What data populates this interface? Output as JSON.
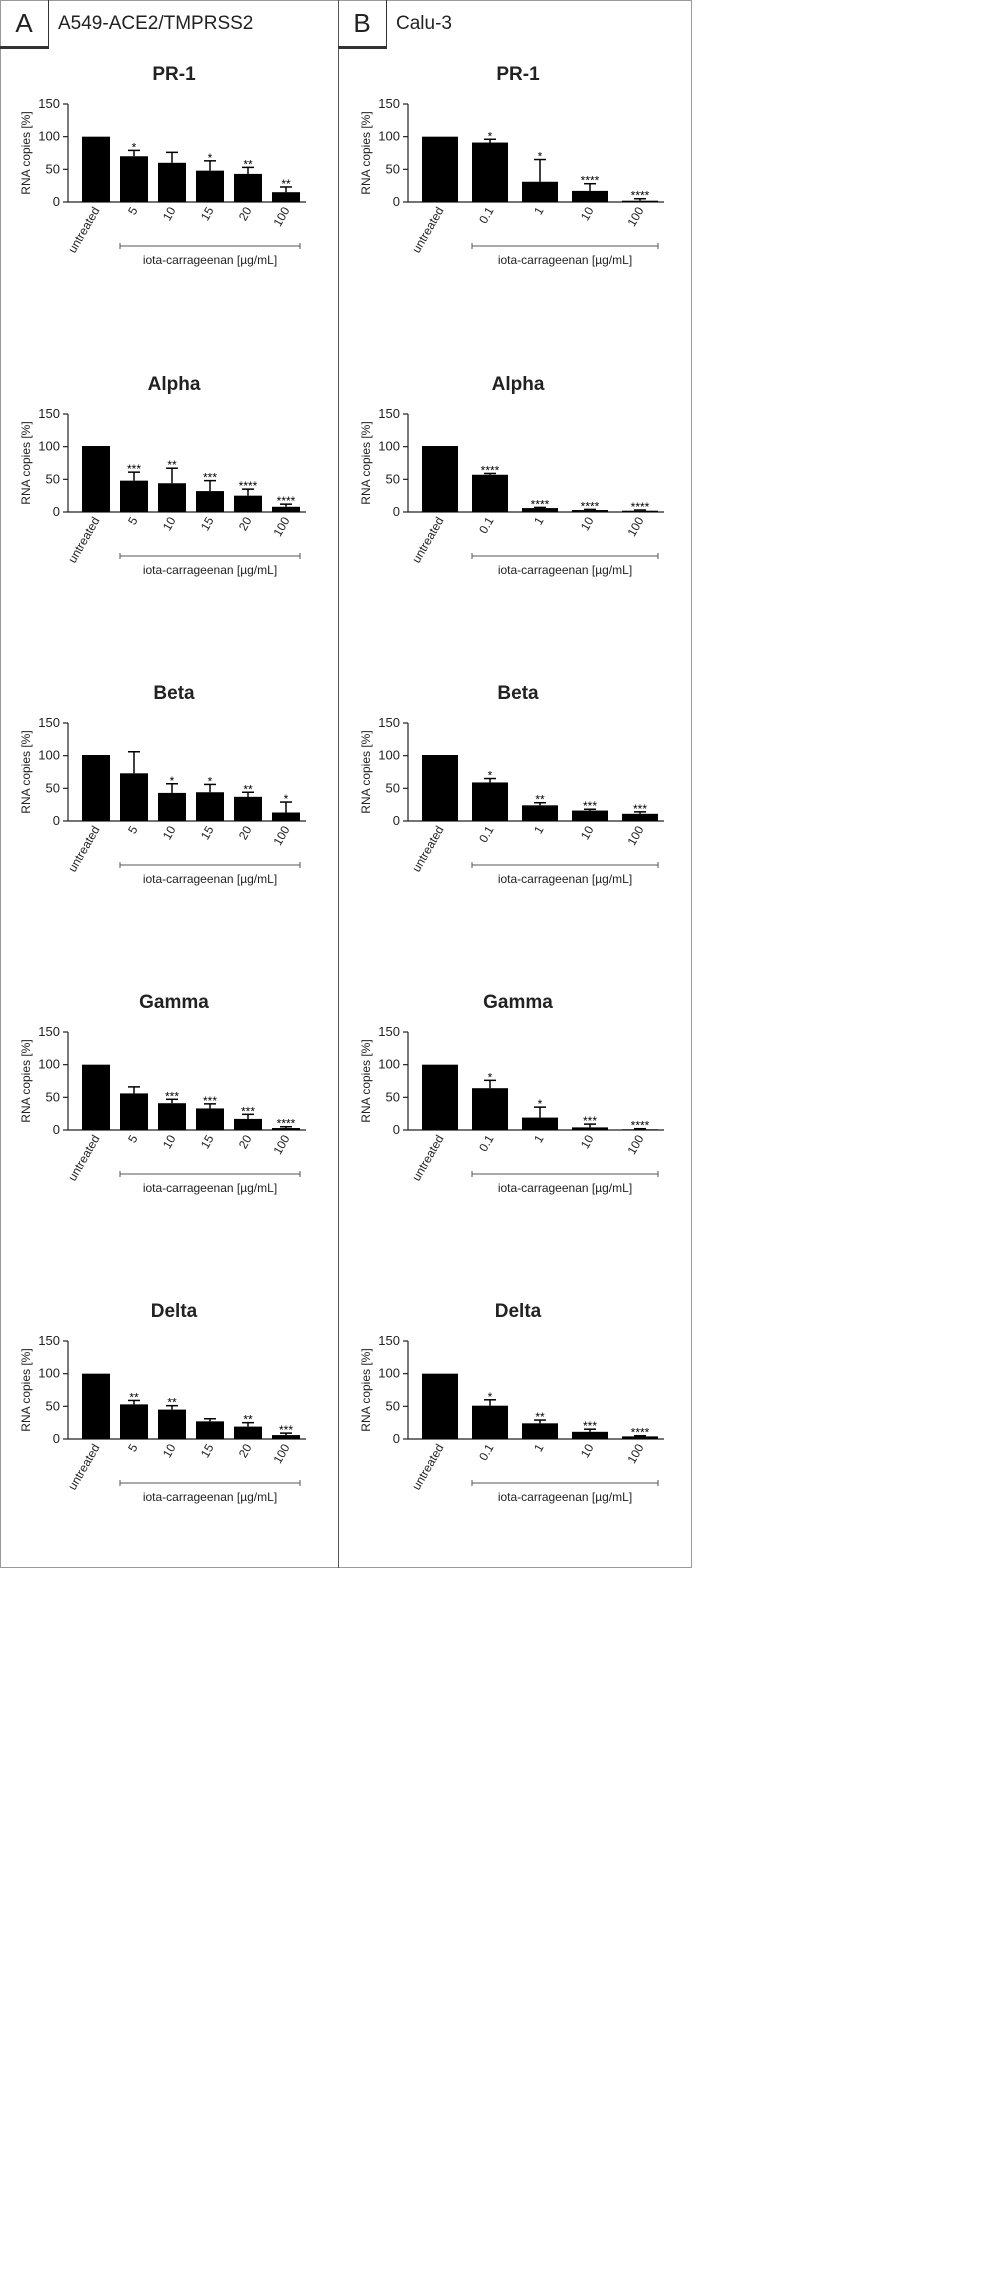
{
  "panels": [
    {
      "letter": "A",
      "cell_line": "A549-ACE2/TMPRSS2"
    },
    {
      "letter": "B",
      "cell_line": "Calu-3"
    }
  ],
  "chart_data": [
    {
      "panel": "A",
      "type": "bar",
      "title": "PR-1",
      "ylabel": "RNA copies [%]",
      "xlabel": "iota-carrageenan [µg/mL]",
      "ylim": [
        0,
        150
      ],
      "yticks": [
        0,
        50,
        100,
        150
      ],
      "categories": [
        "untreated",
        "5",
        "10",
        "15",
        "20",
        "100"
      ],
      "values": [
        100,
        70,
        60,
        48,
        43,
        15
      ],
      "errors": [
        0,
        9,
        16,
        15,
        10,
        8
      ],
      "significance": [
        "",
        "*",
        "",
        "*",
        "**",
        "**"
      ]
    },
    {
      "panel": "A",
      "type": "bar",
      "title": "Alpha",
      "ylabel": "RNA copies [%]",
      "xlabel": "iota-carrageenan [µg/mL]",
      "ylim": [
        0,
        150
      ],
      "yticks": [
        0,
        50,
        100,
        150
      ],
      "categories": [
        "untreated",
        "5",
        "10",
        "15",
        "20",
        "100"
      ],
      "values": [
        101,
        48,
        44,
        32,
        25,
        8
      ],
      "errors": [
        0,
        13,
        23,
        16,
        10,
        4
      ],
      "significance": [
        "",
        "***",
        "**",
        "***",
        "****",
        "****"
      ]
    },
    {
      "panel": "A",
      "type": "bar",
      "title": "Beta",
      "ylabel": "RNA copies [%]",
      "xlabel": "iota-carrageenan [µg/mL]",
      "ylim": [
        0,
        150
      ],
      "yticks": [
        0,
        50,
        100,
        150
      ],
      "categories": [
        "untreated",
        "5",
        "10",
        "15",
        "20",
        "100"
      ],
      "values": [
        101,
        73,
        43,
        44,
        37,
        13
      ],
      "errors": [
        0,
        33,
        14,
        12,
        7,
        16
      ],
      "significance": [
        "",
        "",
        "*",
        "*",
        "**",
        "*"
      ]
    },
    {
      "panel": "A",
      "type": "bar",
      "title": "Gamma",
      "ylabel": "RNA copies [%]",
      "xlabel": "iota-carrageenan [µg/mL]",
      "ylim": [
        0,
        150
      ],
      "yticks": [
        0,
        50,
        100,
        150
      ],
      "categories": [
        "untreated",
        "5",
        "10",
        "15",
        "20",
        "100"
      ],
      "values": [
        100,
        56,
        41,
        33,
        17,
        3
      ],
      "errors": [
        0,
        10,
        6,
        7,
        7,
        2
      ],
      "significance": [
        "",
        "",
        "***",
        "***",
        "***",
        "****"
      ]
    },
    {
      "panel": "A",
      "type": "bar",
      "title": "Delta",
      "ylabel": "RNA copies [%]",
      "xlabel": "iota-carrageenan [µg/mL]",
      "ylim": [
        0,
        150
      ],
      "yticks": [
        0,
        50,
        100,
        150
      ],
      "categories": [
        "untreated",
        "5",
        "10",
        "15",
        "20",
        "100"
      ],
      "values": [
        100,
        53,
        45,
        27,
        19,
        6
      ],
      "errors": [
        0,
        6,
        6,
        4,
        6,
        3
      ],
      "significance": [
        "",
        "**",
        "**",
        "",
        "**",
        "***"
      ]
    },
    {
      "panel": "B",
      "type": "bar",
      "title": "PR-1",
      "ylabel": "RNA copies [%]",
      "xlabel": "iota-carrageenan [µg/mL]",
      "ylim": [
        0,
        150
      ],
      "yticks": [
        0,
        50,
        100,
        150
      ],
      "categories": [
        "untreated",
        "0.1",
        "1",
        "10",
        "100"
      ],
      "values": [
        100,
        91,
        31,
        17,
        2
      ],
      "errors": [
        0,
        5,
        34,
        11,
        3
      ],
      "significance": [
        "",
        "*",
        "*",
        "****",
        "****"
      ]
    },
    {
      "panel": "B",
      "type": "bar",
      "title": "Alpha",
      "ylabel": "RNA copies [%]",
      "xlabel": "iota-carrageenan [µg/mL]",
      "ylim": [
        0,
        150
      ],
      "yticks": [
        0,
        50,
        100,
        150
      ],
      "categories": [
        "untreated",
        "0.1",
        "1",
        "10",
        "100"
      ],
      "values": [
        101,
        57,
        6,
        3,
        2
      ],
      "errors": [
        0,
        2,
        1,
        1,
        1
      ],
      "significance": [
        "",
        "****",
        "****",
        "****",
        "****"
      ]
    },
    {
      "panel": "B",
      "type": "bar",
      "title": "Beta",
      "ylabel": "RNA copies [%]",
      "xlabel": "iota-carrageenan [µg/mL]",
      "ylim": [
        0,
        150
      ],
      "yticks": [
        0,
        50,
        100,
        150
      ],
      "categories": [
        "untreated",
        "0.1",
        "1",
        "10",
        "100"
      ],
      "values": [
        101,
        59,
        24,
        16,
        11
      ],
      "errors": [
        0,
        6,
        4,
        2,
        3
      ],
      "significance": [
        "",
        "*",
        "**",
        "***",
        "***"
      ]
    },
    {
      "panel": "B",
      "type": "bar",
      "title": "Gamma",
      "ylabel": "RNA copies [%]",
      "xlabel": "iota-carrageenan [µg/mL]",
      "ylim": [
        0,
        150
      ],
      "yticks": [
        0,
        50,
        100,
        150
      ],
      "categories": [
        "untreated",
        "0.1",
        "1",
        "10",
        "100"
      ],
      "values": [
        100,
        64,
        19,
        4,
        1
      ],
      "errors": [
        0,
        12,
        16,
        5,
        1
      ],
      "significance": [
        "",
        "*",
        "*",
        "***",
        "****"
      ]
    },
    {
      "panel": "B",
      "type": "bar",
      "title": "Delta",
      "ylabel": "RNA copies [%]",
      "xlabel": "iota-carrageenan [µg/mL]",
      "ylim": [
        0,
        150
      ],
      "yticks": [
        0,
        50,
        100,
        150
      ],
      "categories": [
        "untreated",
        "0.1",
        "1",
        "10",
        "100"
      ],
      "values": [
        100,
        51,
        24,
        11,
        4
      ],
      "errors": [
        0,
        9,
        5,
        4,
        1
      ],
      "significance": [
        "",
        "*",
        "**",
        "***",
        "****"
      ]
    }
  ]
}
